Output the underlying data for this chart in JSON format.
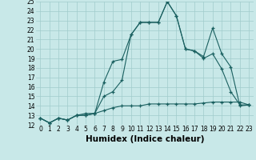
{
  "title": "",
  "xlabel": "Humidex (Indice chaleur)",
  "bg_color": "#c8e8e8",
  "line_color": "#1a6060",
  "grid_color": "#a0cccc",
  "xlim": [
    -0.5,
    23.5
  ],
  "ylim": [
    12,
    25
  ],
  "xticks": [
    0,
    1,
    2,
    3,
    4,
    5,
    6,
    7,
    8,
    9,
    10,
    11,
    12,
    13,
    14,
    15,
    16,
    17,
    18,
    19,
    20,
    21,
    22,
    23
  ],
  "yticks": [
    12,
    13,
    14,
    15,
    16,
    17,
    18,
    19,
    20,
    21,
    22,
    23,
    24,
    25
  ],
  "series": [
    [
      12.7,
      12.2,
      12.7,
      12.5,
      13.0,
      13.0,
      13.2,
      16.5,
      18.7,
      18.9,
      21.5,
      22.8,
      22.8,
      22.8,
      25.0,
      23.5,
      20.0,
      19.8,
      19.0,
      19.5,
      17.9,
      15.5,
      14.1,
      14.1
    ],
    [
      12.7,
      12.2,
      12.7,
      12.5,
      13.0,
      13.2,
      13.2,
      15.0,
      15.5,
      16.7,
      21.5,
      22.8,
      22.8,
      22.8,
      25.0,
      23.5,
      20.0,
      19.8,
      19.2,
      22.2,
      19.5,
      18.1,
      14.0,
      14.1
    ],
    [
      12.7,
      12.2,
      12.7,
      12.5,
      13.0,
      13.0,
      13.2,
      13.5,
      13.8,
      14.0,
      14.0,
      14.0,
      14.2,
      14.2,
      14.2,
      14.2,
      14.2,
      14.2,
      14.3,
      14.4,
      14.4,
      14.4,
      14.4,
      14.1
    ]
  ],
  "xlabel_fontsize": 7.5,
  "tick_fontsize": 5.5
}
